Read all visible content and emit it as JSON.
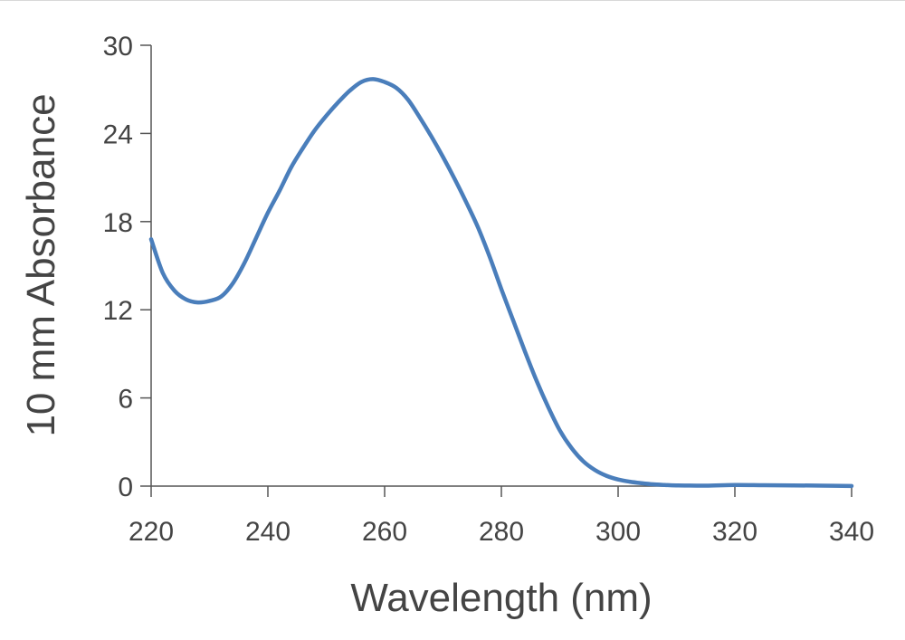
{
  "chart_data": {
    "type": "line",
    "title": "",
    "xlabel": "Wavelength (nm)",
    "ylabel": "10 mm Absorbance",
    "xlim": [
      220,
      340
    ],
    "ylim": [
      0,
      30
    ],
    "x_ticks": [
      "220",
      "240",
      "260",
      "280",
      "300",
      "320",
      "340"
    ],
    "y_ticks": [
      "0",
      "6",
      "12",
      "18",
      "24",
      "30"
    ],
    "grid": false,
    "legend": "none",
    "line_color": "#4a7ebb",
    "series": [
      {
        "x": [
          220,
          222,
          224,
          226,
          228,
          230,
          232,
          234,
          236,
          238,
          240,
          242,
          244,
          246,
          248,
          250,
          252,
          254,
          256,
          258,
          260,
          262,
          264,
          266,
          268,
          270,
          272,
          274,
          276,
          278,
          280,
          282,
          284,
          286,
          288,
          290,
          292,
          294,
          296,
          298,
          300,
          302,
          304,
          306,
          308,
          310,
          315,
          320,
          325,
          330,
          335,
          340
        ],
        "values": [
          16.8,
          14.5,
          13.3,
          12.7,
          12.5,
          12.6,
          12.9,
          13.8,
          15.2,
          16.9,
          18.6,
          20.1,
          21.7,
          23.0,
          24.2,
          25.2,
          26.1,
          26.9,
          27.5,
          27.7,
          27.5,
          27.1,
          26.3,
          25.1,
          23.8,
          22.4,
          20.9,
          19.3,
          17.6,
          15.6,
          13.4,
          11.3,
          9.2,
          7.2,
          5.4,
          3.8,
          2.6,
          1.7,
          1.1,
          0.7,
          0.45,
          0.3,
          0.2,
          0.12,
          0.08,
          0.05,
          0.03,
          0.08,
          0.06,
          0.05,
          0.03,
          0.01
        ]
      }
    ]
  }
}
